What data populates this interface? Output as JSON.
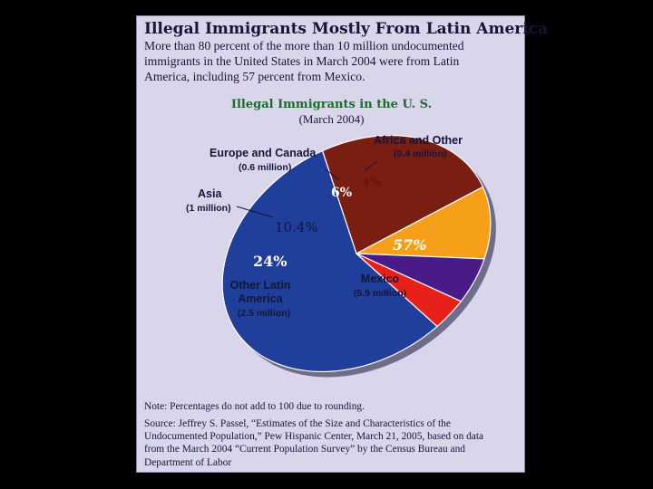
{
  "panel": {
    "title": "Illegal Immigrants Mostly From Latin America",
    "intro_lines": [
      "More than 80 percent of the more than 10 million undocumented",
      "immigrants in the United States in March 2004 were from Latin",
      "America, including 57 percent from Mexico."
    ],
    "note": "Note: Percentages do not add to 100 due to rounding.",
    "source_lines": [
      "Source: Jeffrey S. Passel, “Estimates of the Size and Characteristics of the",
      "Undocumented Population,” Pew Hispanic Center, March 21, 2005, based on data",
      "from the March 2004 “Current Population Survey” by the Census Bureau and",
      "Department of Labor"
    ]
  },
  "chart_data": {
    "type": "pie",
    "title": "Illegal Immigrants in the U. S.",
    "subtitle": "(March 2004)",
    "unit": "percent",
    "slices": [
      {
        "name": "Mexico",
        "detail": "(5.9 million)",
        "value": 57,
        "pct_label": "57%",
        "color": "#1f3f9a",
        "label_color": "#ffffff",
        "pct_color": "#ffffff"
      },
      {
        "name": "Other Latin America",
        "label_lines": [
          "Other Latin",
          "America"
        ],
        "detail": "(2.5 million)",
        "value": 24,
        "pct_label": "24%",
        "color": "#7a1e12",
        "label_color": "#ffffff",
        "pct_color": "#ffffff"
      },
      {
        "name": "Asia",
        "detail": "(1 million)",
        "value": 10.4,
        "pct_label": "10.4%",
        "color": "#f6a01a",
        "label_color": "#15153a",
        "pct_color": "#15153a"
      },
      {
        "name": "Europe and Canada",
        "detail": "(0.6 million)",
        "value": 6,
        "pct_label": "6%",
        "color": "#4a1a86",
        "label_color": "#15153a",
        "pct_color": "#ffffff"
      },
      {
        "name": "Africa and Other",
        "detail": "(0.4 million)",
        "value": 4,
        "pct_label": "4%",
        "color": "#e8201a",
        "label_color": "#15153a",
        "pct_color": "#6a1010"
      }
    ]
  }
}
